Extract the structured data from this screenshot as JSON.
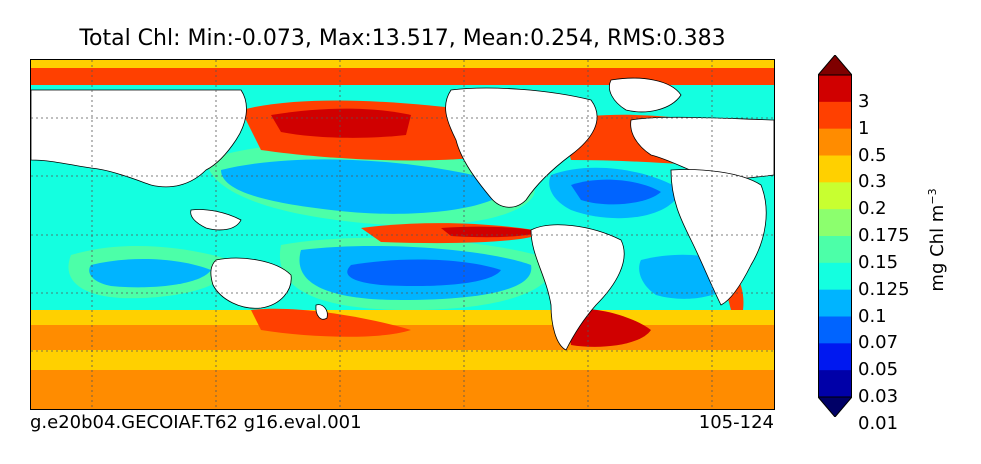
{
  "map": {
    "title": "Total Chl: Min:-0.073, Max:13.517, Mean:0.254, RMS:0.383",
    "footer_left": "g.e20b04.GECOIAF.T62 g16.eval.001",
    "footer_right": "105-124",
    "gridlines": "dotted",
    "land_color": "#ffffff"
  },
  "colorbar": {
    "unit_label": "mg Chl m",
    "unit_exponent": "−3",
    "ticks": [
      "3",
      "1",
      "0.5",
      "0.3",
      "0.2",
      "0.175",
      "0.15",
      "0.125",
      "0.1",
      "0.07",
      "0.05",
      "0.03",
      "0.01"
    ],
    "colors": [
      "#7f0000",
      "#d00000",
      "#ff4000",
      "#ff8c00",
      "#ffd000",
      "#c8ff30",
      "#8cff6e",
      "#4cffa8",
      "#14ffe0",
      "#00b4ff",
      "#0064ff",
      "#0018f0",
      "#0000a8",
      "#000066"
    ],
    "extend": "both"
  }
}
